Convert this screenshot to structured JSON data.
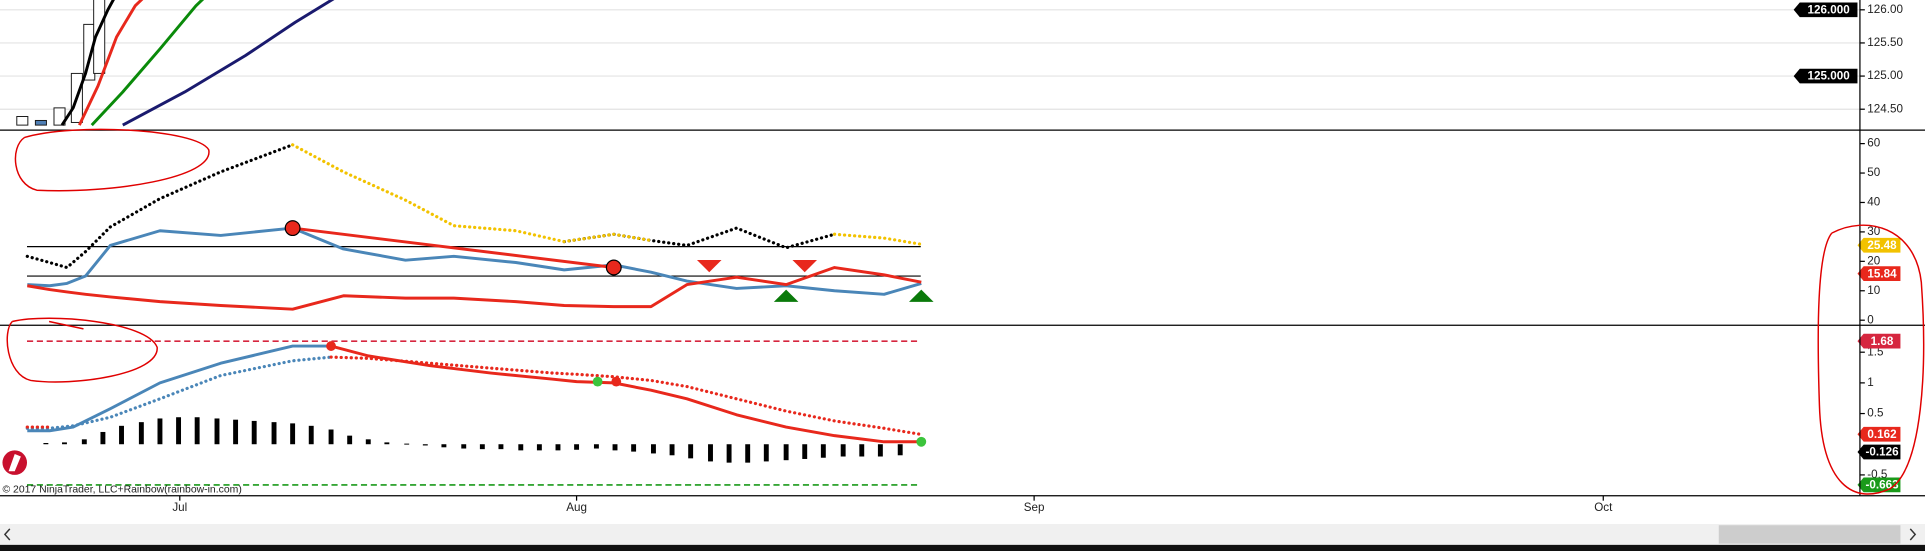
{
  "watermark": "© 2017 NinjaTrader, LLC+Rainbow(rainbow-in.com)",
  "chart_data": [
    {
      "type": "candlestick",
      "xlim": [
        0,
        150
      ],
      "ylim": [
        124.185,
        126.148
      ],
      "grid": true,
      "yticks": [
        {
          "value": 124.5,
          "label": "124.50"
        },
        {
          "value": 125,
          "label": "125.00"
        },
        {
          "value": 125.5,
          "label": "125.50"
        },
        {
          "value": 126,
          "label": "126.00"
        }
      ],
      "tags": [
        {
          "value": 126,
          "label": "126.000",
          "color": "#000000"
        },
        {
          "value": 125,
          "label": "125.000",
          "color": "#000000"
        }
      ],
      "candles": [
        {
          "x": 1.8,
          "open": 124.26,
          "close": 124.39,
          "color": "#ffffff"
        },
        {
          "x": 3.3,
          "open": 124.33,
          "close": 124.26,
          "color": "#4f7fb5"
        },
        {
          "x": 4.8,
          "open": 124.26,
          "close": 124.52,
          "color": "#ffffff"
        },
        {
          "x": 6.2,
          "open": 124.3,
          "close": 125.04,
          "color": "#ffffff"
        },
        {
          "x": 7.2,
          "open": 124.94,
          "close": 125.78,
          "color": "#ffffff"
        },
        {
          "x": 8.0,
          "open": 125.04,
          "close": 126.3,
          "color": "#ffffff"
        }
      ],
      "series": [
        {
          "color": "#000000",
          "style": "solid",
          "x": [
            5.0,
            5.9,
            6.9,
            7.7,
            8.7,
            9.4
          ],
          "values": [
            124.26,
            124.52,
            125.04,
            125.59,
            126,
            126.24
          ]
        },
        {
          "color": "#e8281c",
          "style": "solid",
          "x": [
            6.4,
            7.9,
            9.4,
            10.9,
            11.9
          ],
          "values": [
            124.26,
            124.85,
            125.59,
            126.06,
            126.24
          ]
        },
        {
          "color": "#0a8a0a",
          "style": "solid",
          "x": [
            7.4,
            9.9,
            12.9,
            15.8,
            16.8
          ],
          "values": [
            124.26,
            124.76,
            125.41,
            126.06,
            126.24
          ]
        },
        {
          "color": "#1a1a6e",
          "style": "solid",
          "x": [
            9.9,
            14.9,
            19.8,
            23.8,
            27.2
          ],
          "values": [
            124.26,
            124.76,
            125.31,
            125.81,
            126.2
          ]
        }
      ]
    },
    {
      "type": "line",
      "xlim": [
        0,
        150
      ],
      "ylim": [
        -1.7,
        64.6
      ],
      "yticks": [
        0,
        10,
        20,
        30,
        40,
        50,
        60
      ],
      "hlines": [
        {
          "value": 25,
          "color": "#000000",
          "style": "solid"
        },
        {
          "value": 15,
          "color": "#000000",
          "style": "solid"
        }
      ],
      "tags": [
        {
          "value": 25.48,
          "label": "25.48",
          "color": "#f2c200"
        },
        {
          "value": 15.84,
          "label": "15.84",
          "color": "#e8281c"
        }
      ],
      "series": [
        {
          "color": "#000000",
          "style": "dotted",
          "x": [
            2.2,
            4.0,
            5.4,
            6.9,
            8.9,
            12.9,
            17.8,
            23.6,
            27.7,
            32.7,
            36.6,
            41.6,
            45.5,
            49.5,
            52.5,
            55.4,
            59.4,
            63.4,
            67.3,
            71.3,
            74.3
          ],
          "values": [
            21.7,
            19.6,
            17.9,
            23.3,
            31.7,
            41.3,
            50.4,
            59.6,
            null,
            null,
            null,
            null,
            26.7,
            29.2,
            27.1,
            25.4,
            31.3,
            24.6,
            29.2,
            null,
            null
          ]
        },
        {
          "color": "#f2c200",
          "style": "dotted",
          "x": [
            2.2,
            4.0,
            5.4,
            6.9,
            8.9,
            12.9,
            17.8,
            23.6,
            27.7,
            32.7,
            36.6,
            41.6,
            45.5,
            49.5,
            52.5,
            55.4,
            59.4,
            63.4,
            67.3,
            71.3,
            74.3
          ],
          "values": [
            null,
            null,
            null,
            null,
            null,
            null,
            null,
            59.6,
            50.4,
            40.8,
            32.1,
            30.4,
            26.7,
            29.2,
            27.1,
            null,
            null,
            null,
            29.2,
            27.9,
            25.8
          ]
        },
        {
          "color": "#4a86b8",
          "style": "solid",
          "x": [
            2.2,
            4.0,
            5.4,
            6.9,
            8.9,
            12.9,
            17.8,
            23.6,
            27.7,
            32.7,
            36.6,
            41.6,
            45.5,
            49.5,
            52.5,
            55.4,
            59.4,
            63.4,
            67.3,
            71.3,
            74.3
          ],
          "values": [
            12.1,
            11.7,
            12.5,
            15,
            25.4,
            30.4,
            28.8,
            31.3,
            24.2,
            20.4,
            21.7,
            19.6,
            17.1,
            18.8,
            16.3,
            13.3,
            10.8,
            11.7,
            10,
            8.8,
            12.5
          ]
        },
        {
          "color": "#e8281c",
          "style": "solid",
          "x": [
            2.2,
            4.0,
            5.4,
            6.9,
            8.9,
            12.9,
            17.8,
            23.6,
            27.7,
            32.7,
            36.6,
            41.6,
            45.5,
            49.5,
            52.5,
            55.4,
            59.4,
            63.4,
            67.3,
            71.3,
            74.3
          ],
          "values": [
            11.7,
            10.4,
            9.6,
            8.8,
            7.9,
            6.3,
            5,
            3.75,
            8.3,
            7.5,
            7.5,
            6.3,
            5,
            4.6,
            4.6,
            12.1,
            14.6,
            12.1,
            17.9,
            15.4,
            12.9
          ]
        },
        {
          "color": "#e8281c",
          "style": "solid",
          "x": [
            23.6,
            49.5
          ],
          "values": [
            31.3,
            17.9
          ]
        }
      ],
      "markers": [
        {
          "x": 23.6,
          "y": 31.3,
          "shape": "circle",
          "color": "#e8281c"
        },
        {
          "x": 49.5,
          "y": 17.9,
          "shape": "circle",
          "color": "#e8281c"
        },
        {
          "x": 57.2,
          "y": 16.3,
          "shape": "triangle-down",
          "color": "#e8281c"
        },
        {
          "x": 64.9,
          "y": 16.3,
          "shape": "triangle-down",
          "color": "#e8281c"
        },
        {
          "x": 63.4,
          "y": 10.4,
          "shape": "triangle-up",
          "color": "#0a7a0a"
        },
        {
          "x": 74.3,
          "y": 10.4,
          "shape": "triangle-up",
          "color": "#0a7a0a"
        }
      ]
    },
    {
      "type": "histogram",
      "xlim": [
        0,
        150
      ],
      "ylim": [
        -0.84,
        1.94
      ],
      "yticks": [
        -0.5,
        0.5,
        1,
        1.5
      ],
      "xticks": [
        {
          "value": 14.5,
          "label": "Jul"
        },
        {
          "value": 46.5,
          "label": "Aug"
        },
        {
          "value": 83.4,
          "label": "Sep"
        },
        {
          "value": 129.3,
          "label": "Oct"
        }
      ],
      "hlines": [
        {
          "value": 1.68,
          "color": "#d6263f",
          "style": "dashed"
        },
        {
          "value": -0.663,
          "color": "#1a9a1a",
          "style": "dashed"
        }
      ],
      "tags": [
        {
          "value": 1.68,
          "label": "1.68",
          "color": "#d6263f"
        },
        {
          "value": 0.162,
          "label": "0.162",
          "color": "#e8281c"
        },
        {
          "value": -0.126,
          "label": "-0.126",
          "color": "#000000"
        },
        {
          "value": -0.663,
          "label": "-0.663",
          "color": "#1a9a1a"
        }
      ],
      "bars": {
        "color": "#000000",
        "x": [
          3.7,
          5.2,
          6.8,
          8.3,
          9.8,
          11.4,
          12.9,
          14.4,
          15.9,
          17.5,
          19.0,
          20.5,
          22.1,
          23.6,
          25.1,
          26.7,
          28.2,
          29.7,
          31.2,
          32.8,
          34.3,
          35.8,
          37.4,
          38.9,
          40.4,
          42.0,
          43.5,
          45.0,
          46.5,
          48.1,
          49.6,
          51.1,
          52.7,
          54.2,
          55.7,
          57.3,
          58.8,
          60.3,
          61.8,
          63.4,
          64.9,
          66.4,
          68.0,
          69.5,
          71.0,
          72.6
        ],
        "values": [
          0.02,
          0.03,
          0.08,
          0.2,
          0.3,
          0.36,
          0.42,
          0.44,
          0.44,
          0.42,
          0.4,
          0.38,
          0.36,
          0.34,
          0.3,
          0.24,
          0.14,
          0.08,
          0.03,
          0.01,
          -0.02,
          -0.05,
          -0.07,
          -0.08,
          -0.08,
          -0.1,
          -0.1,
          -0.1,
          -0.09,
          -0.07,
          -0.1,
          -0.12,
          -0.15,
          -0.18,
          -0.23,
          -0.28,
          -0.3,
          -0.3,
          -0.28,
          -0.26,
          -0.24,
          -0.22,
          -0.2,
          -0.2,
          -0.2,
          -0.18
        ]
      },
      "series": [
        {
          "color": "#4a86b8",
          "style": "solid",
          "x": [
            2.2,
            4.0,
            5.9,
            8.9,
            12.9,
            17.8,
            23.6,
            26.7
          ],
          "values": [
            0.22,
            0.22,
            0.28,
            0.58,
            1,
            1.32,
            1.6,
            1.6
          ]
        },
        {
          "color": "#e8281c",
          "style": "solid",
          "x": [
            26.7,
            29.7,
            34.7,
            39.6,
            44.6,
            46.5,
            49.5,
            52.5,
            55.4,
            59.4,
            63.4,
            67.3,
            71.3,
            74.3
          ],
          "values": [
            1.6,
            1.44,
            1.28,
            1.16,
            1.06,
            1.02,
            1,
            0.88,
            0.74,
            0.48,
            0.28,
            0.14,
            0.04,
            0.04
          ]
        },
        {
          "color": "#4a86b8",
          "style": "dotted",
          "x": [
            2.2,
            4.0,
            5.9,
            8.9,
            12.9,
            17.8,
            23.6,
            26.7
          ],
          "values": [
            0.26,
            0.26,
            0.3,
            0.44,
            0.74,
            1.12,
            1.36,
            1.42
          ]
        },
        {
          "color": "#e8281c",
          "style": "dotted",
          "x": [
            2.2,
            4.0,
            5.9,
            26.7,
            29.7,
            34.7,
            39.6,
            44.6,
            46.5,
            49.5,
            52.5,
            55.4,
            59.4,
            63.4,
            67.3,
            71.3,
            74.3
          ],
          "values": [
            0.28,
            0.28,
            null,
            1.42,
            1.4,
            1.32,
            1.24,
            1.16,
            1.14,
            1.1,
            1.04,
            0.94,
            0.74,
            0.54,
            0.38,
            0.26,
            0.16
          ]
        }
      ],
      "markers": [
        {
          "x": 26.7,
          "y": 1.6,
          "shape": "dot",
          "color": "#e8281c"
        },
        {
          "x": 48.2,
          "y": 1.02,
          "shape": "dot",
          "color": "#3cc43c"
        },
        {
          "x": 49.7,
          "y": 1.02,
          "shape": "dot",
          "color": "#e8281c"
        },
        {
          "x": 74.3,
          "y": 0.04,
          "shape": "dot",
          "color": "#3cc43c"
        }
      ]
    }
  ]
}
